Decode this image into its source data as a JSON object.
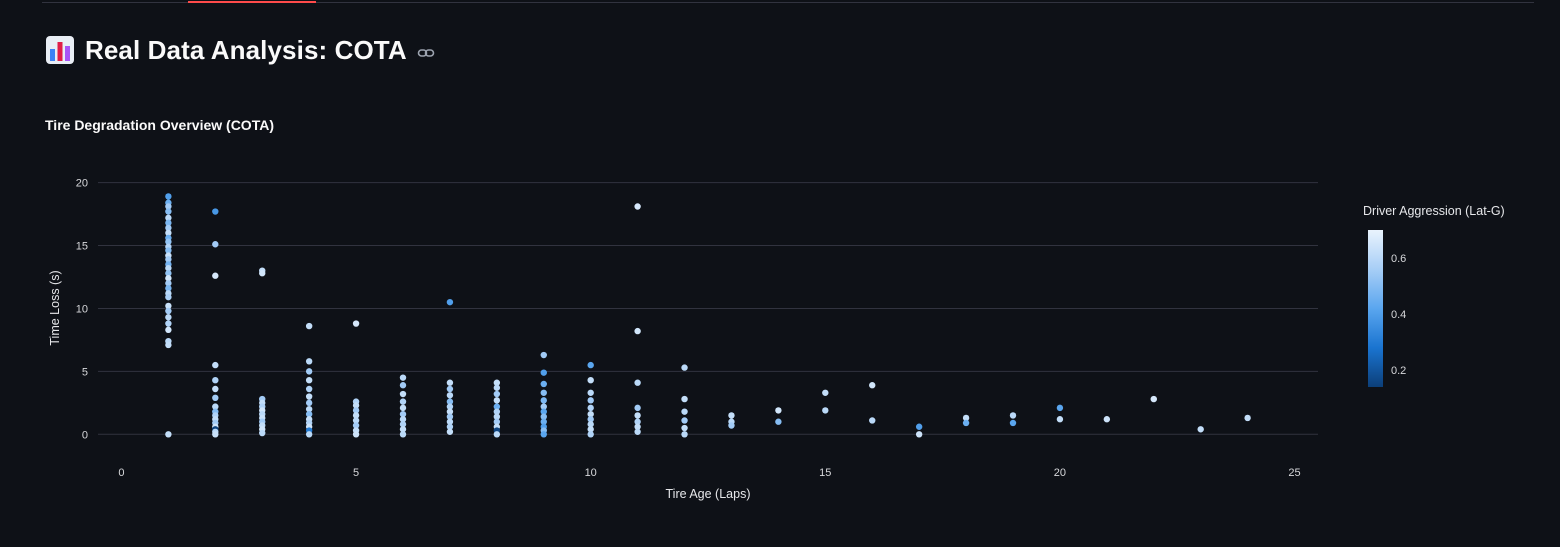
{
  "header": {
    "title_icon": "bar-chart-icon",
    "title": "Real Data Analysis: COTA",
    "link_icon": "link-icon",
    "accent_color": "#ff4b4b"
  },
  "section": {
    "title": "Tire Degradation Overview (COTA)"
  },
  "chart_data": {
    "type": "scatter",
    "title": "",
    "xlabel": "Tire Age (Laps)",
    "ylabel": "Time Loss (s)",
    "xlim": [
      -0.5,
      25.5
    ],
    "ylim": [
      -2.2,
      21
    ],
    "xticks": [
      0,
      5,
      10,
      15,
      20,
      25
    ],
    "yticks": [
      0,
      5,
      10,
      15,
      20
    ],
    "grid": true,
    "colorbar": {
      "title": "Driver Aggression (Lat-G)",
      "ticks": [
        0.2,
        0.4,
        0.6
      ],
      "range": [
        0.14,
        0.7
      ],
      "colors": [
        "#0c3f79",
        "#1a74d0",
        "#5aa6ef",
        "#a7cef6",
        "#e9f3fd"
      ]
    },
    "points": [
      {
        "x": 1,
        "y": 18.9,
        "c": 0.4
      },
      {
        "x": 1,
        "y": 18.4,
        "c": 0.45
      },
      {
        "x": 1,
        "y": 18.1,
        "c": 0.55
      },
      {
        "x": 1,
        "y": 17.7,
        "c": 0.5
      },
      {
        "x": 1,
        "y": 17.2,
        "c": 0.6
      },
      {
        "x": 1,
        "y": 16.8,
        "c": 0.48
      },
      {
        "x": 1,
        "y": 16.4,
        "c": 0.55
      },
      {
        "x": 1,
        "y": 16.0,
        "c": 0.62
      },
      {
        "x": 1,
        "y": 15.6,
        "c": 0.45
      },
      {
        "x": 1,
        "y": 15.3,
        "c": 0.52
      },
      {
        "x": 1,
        "y": 14.9,
        "c": 0.58
      },
      {
        "x": 1,
        "y": 14.6,
        "c": 0.5
      },
      {
        "x": 1,
        "y": 14.2,
        "c": 0.63
      },
      {
        "x": 1,
        "y": 13.9,
        "c": 0.55
      },
      {
        "x": 1,
        "y": 13.5,
        "c": 0.47
      },
      {
        "x": 1,
        "y": 13.2,
        "c": 0.6
      },
      {
        "x": 1,
        "y": 12.8,
        "c": 0.52
      },
      {
        "x": 1,
        "y": 12.4,
        "c": 0.65
      },
      {
        "x": 1,
        "y": 12.0,
        "c": 0.55
      },
      {
        "x": 1,
        "y": 11.6,
        "c": 0.48
      },
      {
        "x": 1,
        "y": 11.2,
        "c": 0.6
      },
      {
        "x": 1,
        "y": 10.9,
        "c": 0.57
      },
      {
        "x": 1,
        "y": 10.2,
        "c": 0.63
      },
      {
        "x": 1,
        "y": 9.8,
        "c": 0.55
      },
      {
        "x": 1,
        "y": 9.3,
        "c": 0.6
      },
      {
        "x": 1,
        "y": 8.8,
        "c": 0.58
      },
      {
        "x": 1,
        "y": 8.3,
        "c": 0.65
      },
      {
        "x": 1,
        "y": 7.4,
        "c": 0.6
      },
      {
        "x": 1,
        "y": 7.1,
        "c": 0.62
      },
      {
        "x": 1,
        "y": 0.0,
        "c": 0.62
      },
      {
        "x": 2,
        "y": 17.7,
        "c": 0.38
      },
      {
        "x": 2,
        "y": 15.1,
        "c": 0.55
      },
      {
        "x": 2,
        "y": 12.6,
        "c": 0.66
      },
      {
        "x": 2,
        "y": 5.5,
        "c": 0.62
      },
      {
        "x": 2,
        "y": 4.3,
        "c": 0.58
      },
      {
        "x": 2,
        "y": 3.6,
        "c": 0.62
      },
      {
        "x": 2,
        "y": 2.9,
        "c": 0.55
      },
      {
        "x": 2,
        "y": 2.2,
        "c": 0.6
      },
      {
        "x": 2,
        "y": 1.8,
        "c": 0.5
      },
      {
        "x": 2,
        "y": 1.5,
        "c": 0.58
      },
      {
        "x": 2,
        "y": 1.2,
        "c": 0.62
      },
      {
        "x": 2,
        "y": 0.9,
        "c": 0.55
      },
      {
        "x": 2,
        "y": 0.6,
        "c": 0.64
      },
      {
        "x": 2,
        "y": 0.4,
        "c": 0.15
      },
      {
        "x": 2,
        "y": 0.2,
        "c": 0.6
      },
      {
        "x": 2,
        "y": 0.0,
        "c": 0.63
      },
      {
        "x": 3,
        "y": 13.0,
        "c": 0.62
      },
      {
        "x": 3,
        "y": 12.8,
        "c": 0.65
      },
      {
        "x": 3,
        "y": 2.8,
        "c": 0.55
      },
      {
        "x": 3,
        "y": 2.5,
        "c": 0.62
      },
      {
        "x": 3,
        "y": 2.2,
        "c": 0.58
      },
      {
        "x": 3,
        "y": 1.9,
        "c": 0.65
      },
      {
        "x": 3,
        "y": 1.6,
        "c": 0.6
      },
      {
        "x": 3,
        "y": 1.3,
        "c": 0.63
      },
      {
        "x": 3,
        "y": 1.0,
        "c": 0.55
      },
      {
        "x": 3,
        "y": 0.7,
        "c": 0.62
      },
      {
        "x": 3,
        "y": 0.4,
        "c": 0.65
      },
      {
        "x": 3,
        "y": 0.1,
        "c": 0.6
      },
      {
        "x": 4,
        "y": 8.6,
        "c": 0.62
      },
      {
        "x": 4,
        "y": 5.8,
        "c": 0.6
      },
      {
        "x": 4,
        "y": 5.0,
        "c": 0.55
      },
      {
        "x": 4,
        "y": 4.3,
        "c": 0.62
      },
      {
        "x": 4,
        "y": 3.6,
        "c": 0.58
      },
      {
        "x": 4,
        "y": 3.0,
        "c": 0.62
      },
      {
        "x": 4,
        "y": 2.5,
        "c": 0.55
      },
      {
        "x": 4,
        "y": 2.0,
        "c": 0.6
      },
      {
        "x": 4,
        "y": 1.6,
        "c": 0.5
      },
      {
        "x": 4,
        "y": 1.2,
        "c": 0.62
      },
      {
        "x": 4,
        "y": 0.9,
        "c": 0.58
      },
      {
        "x": 4,
        "y": 0.6,
        "c": 0.64
      },
      {
        "x": 4,
        "y": 0.3,
        "c": 0.3
      },
      {
        "x": 4,
        "y": 0.0,
        "c": 0.6
      },
      {
        "x": 5,
        "y": 8.8,
        "c": 0.66
      },
      {
        "x": 5,
        "y": 2.6,
        "c": 0.58
      },
      {
        "x": 5,
        "y": 2.3,
        "c": 0.62
      },
      {
        "x": 5,
        "y": 1.9,
        "c": 0.55
      },
      {
        "x": 5,
        "y": 1.5,
        "c": 0.62
      },
      {
        "x": 5,
        "y": 1.1,
        "c": 0.6
      },
      {
        "x": 5,
        "y": 0.7,
        "c": 0.55
      },
      {
        "x": 5,
        "y": 0.3,
        "c": 0.62
      },
      {
        "x": 5,
        "y": 0.0,
        "c": 0.64
      },
      {
        "x": 6,
        "y": 4.5,
        "c": 0.6
      },
      {
        "x": 6,
        "y": 3.9,
        "c": 0.55
      },
      {
        "x": 6,
        "y": 3.2,
        "c": 0.62
      },
      {
        "x": 6,
        "y": 2.6,
        "c": 0.58
      },
      {
        "x": 6,
        "y": 2.1,
        "c": 0.62
      },
      {
        "x": 6,
        "y": 1.6,
        "c": 0.55
      },
      {
        "x": 6,
        "y": 1.2,
        "c": 0.6
      },
      {
        "x": 6,
        "y": 0.8,
        "c": 0.58
      },
      {
        "x": 6,
        "y": 0.4,
        "c": 0.62
      },
      {
        "x": 6,
        "y": 0.0,
        "c": 0.6
      },
      {
        "x": 7,
        "y": 10.5,
        "c": 0.4
      },
      {
        "x": 7,
        "y": 4.1,
        "c": 0.62
      },
      {
        "x": 7,
        "y": 3.6,
        "c": 0.55
      },
      {
        "x": 7,
        "y": 3.1,
        "c": 0.6
      },
      {
        "x": 7,
        "y": 2.6,
        "c": 0.5
      },
      {
        "x": 7,
        "y": 2.2,
        "c": 0.58
      },
      {
        "x": 7,
        "y": 1.8,
        "c": 0.62
      },
      {
        "x": 7,
        "y": 1.4,
        "c": 0.55
      },
      {
        "x": 7,
        "y": 1.0,
        "c": 0.6
      },
      {
        "x": 7,
        "y": 0.6,
        "c": 0.58
      },
      {
        "x": 7,
        "y": 0.2,
        "c": 0.62
      },
      {
        "x": 8,
        "y": 4.1,
        "c": 0.62
      },
      {
        "x": 8,
        "y": 3.7,
        "c": 0.6
      },
      {
        "x": 8,
        "y": 3.2,
        "c": 0.55
      },
      {
        "x": 8,
        "y": 2.7,
        "c": 0.62
      },
      {
        "x": 8,
        "y": 2.2,
        "c": 0.45
      },
      {
        "x": 8,
        "y": 1.8,
        "c": 0.58
      },
      {
        "x": 8,
        "y": 1.4,
        "c": 0.6
      },
      {
        "x": 8,
        "y": 1.0,
        "c": 0.55
      },
      {
        "x": 8,
        "y": 0.6,
        "c": 0.62
      },
      {
        "x": 8,
        "y": 0.3,
        "c": 0.15
      },
      {
        "x": 8,
        "y": 0.0,
        "c": 0.6
      },
      {
        "x": 9,
        "y": 6.3,
        "c": 0.55
      },
      {
        "x": 9,
        "y": 4.9,
        "c": 0.4
      },
      {
        "x": 9,
        "y": 4.0,
        "c": 0.45
      },
      {
        "x": 9,
        "y": 3.3,
        "c": 0.5
      },
      {
        "x": 9,
        "y": 2.7,
        "c": 0.48
      },
      {
        "x": 9,
        "y": 2.2,
        "c": 0.55
      },
      {
        "x": 9,
        "y": 1.8,
        "c": 0.42
      },
      {
        "x": 9,
        "y": 1.4,
        "c": 0.5
      },
      {
        "x": 9,
        "y": 1.0,
        "c": 0.45
      },
      {
        "x": 9,
        "y": 0.6,
        "c": 0.4
      },
      {
        "x": 9,
        "y": 0.3,
        "c": 0.5
      },
      {
        "x": 9,
        "y": 0.0,
        "c": 0.42
      },
      {
        "x": 10,
        "y": 5.5,
        "c": 0.42
      },
      {
        "x": 10,
        "y": 4.3,
        "c": 0.62
      },
      {
        "x": 10,
        "y": 3.3,
        "c": 0.6
      },
      {
        "x": 10,
        "y": 2.7,
        "c": 0.55
      },
      {
        "x": 10,
        "y": 2.1,
        "c": 0.58
      },
      {
        "x": 10,
        "y": 1.6,
        "c": 0.62
      },
      {
        "x": 10,
        "y": 1.2,
        "c": 0.55
      },
      {
        "x": 10,
        "y": 0.8,
        "c": 0.6
      },
      {
        "x": 10,
        "y": 0.4,
        "c": 0.62
      },
      {
        "x": 10,
        "y": 0.0,
        "c": 0.58
      },
      {
        "x": 11,
        "y": 18.1,
        "c": 0.66
      },
      {
        "x": 11,
        "y": 8.2,
        "c": 0.65
      },
      {
        "x": 11,
        "y": 4.1,
        "c": 0.6
      },
      {
        "x": 11,
        "y": 2.1,
        "c": 0.55
      },
      {
        "x": 11,
        "y": 1.5,
        "c": 0.62
      },
      {
        "x": 11,
        "y": 1.0,
        "c": 0.58
      },
      {
        "x": 11,
        "y": 0.6,
        "c": 0.62
      },
      {
        "x": 11,
        "y": 0.2,
        "c": 0.6
      },
      {
        "x": 12,
        "y": 5.3,
        "c": 0.6
      },
      {
        "x": 12,
        "y": 2.8,
        "c": 0.62
      },
      {
        "x": 12,
        "y": 1.8,
        "c": 0.6
      },
      {
        "x": 12,
        "y": 1.1,
        "c": 0.55
      },
      {
        "x": 12,
        "y": 0.5,
        "c": 0.62
      },
      {
        "x": 12,
        "y": 0.0,
        "c": 0.6
      },
      {
        "x": 13,
        "y": 1.5,
        "c": 0.62
      },
      {
        "x": 13,
        "y": 1.0,
        "c": 0.6
      },
      {
        "x": 13,
        "y": 0.7,
        "c": 0.55
      },
      {
        "x": 14,
        "y": 1.9,
        "c": 0.65
      },
      {
        "x": 14,
        "y": 1.0,
        "c": 0.5
      },
      {
        "x": 15,
        "y": 3.3,
        "c": 0.62
      },
      {
        "x": 15,
        "y": 1.9,
        "c": 0.6
      },
      {
        "x": 16,
        "y": 3.9,
        "c": 0.65
      },
      {
        "x": 16,
        "y": 1.1,
        "c": 0.6
      },
      {
        "x": 17,
        "y": 0.6,
        "c": 0.4
      },
      {
        "x": 17,
        "y": 0.0,
        "c": 0.64
      },
      {
        "x": 18,
        "y": 1.3,
        "c": 0.62
      },
      {
        "x": 18,
        "y": 0.9,
        "c": 0.45
      },
      {
        "x": 19,
        "y": 1.5,
        "c": 0.6
      },
      {
        "x": 19,
        "y": 0.9,
        "c": 0.42
      },
      {
        "x": 20,
        "y": 2.1,
        "c": 0.42
      },
      {
        "x": 20,
        "y": 1.2,
        "c": 0.62
      },
      {
        "x": 21,
        "y": 1.2,
        "c": 0.64
      },
      {
        "x": 22,
        "y": 2.8,
        "c": 0.66
      },
      {
        "x": 23,
        "y": 0.4,
        "c": 0.62
      },
      {
        "x": 24,
        "y": 1.3,
        "c": 0.62
      }
    ]
  }
}
